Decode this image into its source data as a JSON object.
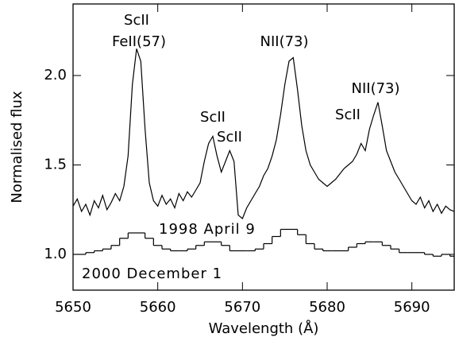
{
  "chart_data": {
    "type": "line",
    "xlabel": "Wavelength (Å)",
    "ylabel": "Normalised flux",
    "xlim": [
      5650,
      5695
    ],
    "ylim": [
      0.8,
      2.4
    ],
    "xticks": [
      5650,
      5660,
      5670,
      5680,
      5690
    ],
    "yticks": [
      {
        "value": 1,
        "label": "1.0"
      },
      1.5,
      {
        "value": 2,
        "label": "2.0"
      }
    ],
    "series": [
      {
        "name": "1998 April 9",
        "color": "#000000",
        "style": "line",
        "x": [
          5650,
          5650.5,
          5651,
          5651.5,
          5652,
          5652.5,
          5653,
          5653.5,
          5654,
          5654.5,
          5655,
          5655.5,
          5656,
          5656.5,
          5657,
          5657.5,
          5658,
          5658.5,
          5659,
          5659.5,
          5660,
          5660.5,
          5661,
          5661.5,
          5662,
          5662.5,
          5663,
          5663.5,
          5664,
          5664.5,
          5665,
          5665.5,
          5666,
          5666.5,
          5667,
          5667.5,
          5668,
          5668.5,
          5669,
          5669.5,
          5670,
          5670.5,
          5671,
          5671.5,
          5672,
          5672.5,
          5673,
          5673.5,
          5674,
          5674.5,
          5675,
          5675.5,
          5676,
          5676.5,
          5677,
          5677.5,
          5678,
          5678.5,
          5679,
          5679.5,
          5680,
          5680.5,
          5681,
          5681.5,
          5682,
          5682.5,
          5683,
          5683.5,
          5684,
          5684.5,
          5685,
          5685.5,
          5686,
          5686.5,
          5687,
          5687.5,
          5688,
          5688.5,
          5689,
          5689.5,
          5690,
          5690.5,
          5691,
          5691.5,
          5692,
          5692.5,
          5693,
          5693.5,
          5694,
          5694.5,
          5695
        ],
        "values": [
          1.27,
          1.31,
          1.24,
          1.28,
          1.22,
          1.3,
          1.26,
          1.33,
          1.25,
          1.29,
          1.34,
          1.3,
          1.38,
          1.55,
          1.95,
          2.15,
          2.08,
          1.7,
          1.4,
          1.3,
          1.27,
          1.33,
          1.28,
          1.31,
          1.26,
          1.34,
          1.3,
          1.35,
          1.32,
          1.36,
          1.4,
          1.52,
          1.62,
          1.66,
          1.55,
          1.46,
          1.52,
          1.58,
          1.52,
          1.22,
          1.2,
          1.26,
          1.3,
          1.34,
          1.38,
          1.44,
          1.48,
          1.55,
          1.64,
          1.78,
          1.95,
          2.08,
          2.1,
          1.92,
          1.72,
          1.58,
          1.5,
          1.46,
          1.42,
          1.4,
          1.38,
          1.4,
          1.42,
          1.45,
          1.48,
          1.5,
          1.52,
          1.56,
          1.62,
          1.58,
          1.7,
          1.78,
          1.85,
          1.72,
          1.58,
          1.52,
          1.46,
          1.42,
          1.38,
          1.34,
          1.3,
          1.28,
          1.32,
          1.26,
          1.3,
          1.24,
          1.28,
          1.23,
          1.27,
          1.25,
          1.24
        ]
      },
      {
        "name": "2000 December 1",
        "color": "#000000",
        "style": "step",
        "x": [
          5650,
          5651,
          5652,
          5653,
          5654,
          5655,
          5656,
          5657,
          5658,
          5659,
          5660,
          5661,
          5662,
          5663,
          5664,
          5665,
          5666,
          5667,
          5668,
          5669,
          5670,
          5671,
          5672,
          5673,
          5674,
          5675,
          5676,
          5677,
          5678,
          5679,
          5680,
          5681,
          5682,
          5683,
          5684,
          5685,
          5686,
          5687,
          5688,
          5689,
          5690,
          5691,
          5692,
          5693,
          5694,
          5695
        ],
        "values": [
          1.0,
          1.0,
          1.01,
          1.02,
          1.03,
          1.05,
          1.09,
          1.12,
          1.12,
          1.09,
          1.05,
          1.03,
          1.02,
          1.02,
          1.03,
          1.05,
          1.07,
          1.07,
          1.05,
          1.02,
          1.02,
          1.02,
          1.03,
          1.06,
          1.1,
          1.14,
          1.14,
          1.11,
          1.06,
          1.03,
          1.02,
          1.02,
          1.02,
          1.04,
          1.06,
          1.07,
          1.07,
          1.05,
          1.03,
          1.01,
          1.01,
          1.01,
          1.0,
          0.99,
          1.0,
          0.99
        ]
      }
    ],
    "annotations": [
      "ScII",
      "FeII(57)",
      "NII(73)",
      "ScII",
      "ScII",
      "ScII",
      "NII(73)"
    ]
  }
}
